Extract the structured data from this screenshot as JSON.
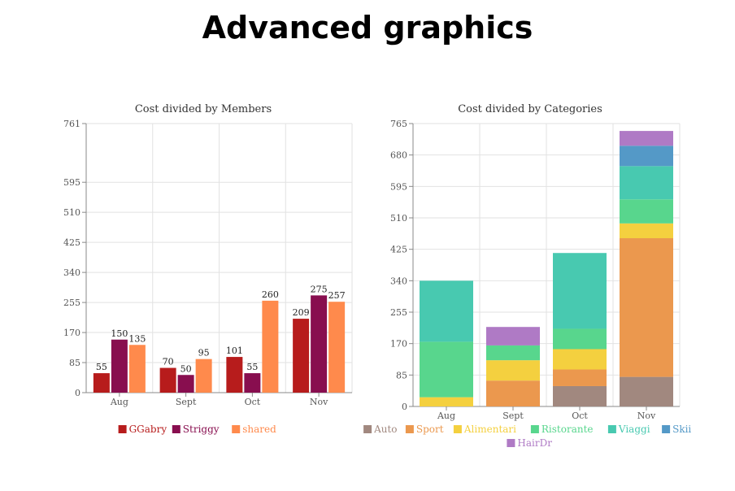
{
  "page": {
    "title": "Advanced graphics"
  },
  "chart_data": [
    {
      "type": "bar",
      "title": "Cost divided by Members",
      "categories": [
        "Aug",
        "Sept",
        "Oct",
        "Nov"
      ],
      "series": [
        {
          "name": "GGabry",
          "color": "#b71c1c",
          "values": [
            55,
            70,
            101,
            209
          ]
        },
        {
          "name": "Striggy",
          "color": "#880e4f",
          "values": [
            150,
            50,
            55,
            275
          ]
        },
        {
          "name": "shared",
          "color": "#ff8a4c",
          "values": [
            135,
            95,
            260,
            257
          ]
        }
      ],
      "yticks": [
        0,
        85,
        170,
        255,
        340,
        425,
        510,
        595,
        761
      ],
      "ylim": [
        0,
        761
      ],
      "grid": true,
      "legend": "bottom"
    },
    {
      "type": "bar",
      "stacked": true,
      "title": "Cost divided by Categories",
      "categories": [
        "Aug",
        "Sept",
        "Oct",
        "Nov"
      ],
      "series": [
        {
          "name": "Auto",
          "color": "#a1887f",
          "values": [
            0,
            0,
            55,
            80
          ]
        },
        {
          "name": "Sport",
          "color": "#eb984e",
          "values": [
            0,
            70,
            45,
            375
          ]
        },
        {
          "name": "Alimentari",
          "color": "#f4d03f",
          "values": [
            25,
            55,
            55,
            40
          ]
        },
        {
          "name": "Ristorante",
          "color": "#58d68d",
          "values": [
            150,
            40,
            55,
            65
          ]
        },
        {
          "name": "Viaggi",
          "color": "#48c9b0",
          "values": [
            165,
            0,
            205,
            90
          ]
        },
        {
          "name": "Skii",
          "color": "#5499c7",
          "values": [
            0,
            0,
            0,
            55
          ]
        },
        {
          "name": "HairDr",
          "color": "#af7ac5",
          "values": [
            0,
            50,
            0,
            40
          ]
        }
      ],
      "yticks": [
        0,
        85,
        170,
        255,
        340,
        425,
        510,
        595,
        680,
        765
      ],
      "ylim": [
        0,
        765
      ],
      "grid": true,
      "legend": "bottom"
    }
  ]
}
